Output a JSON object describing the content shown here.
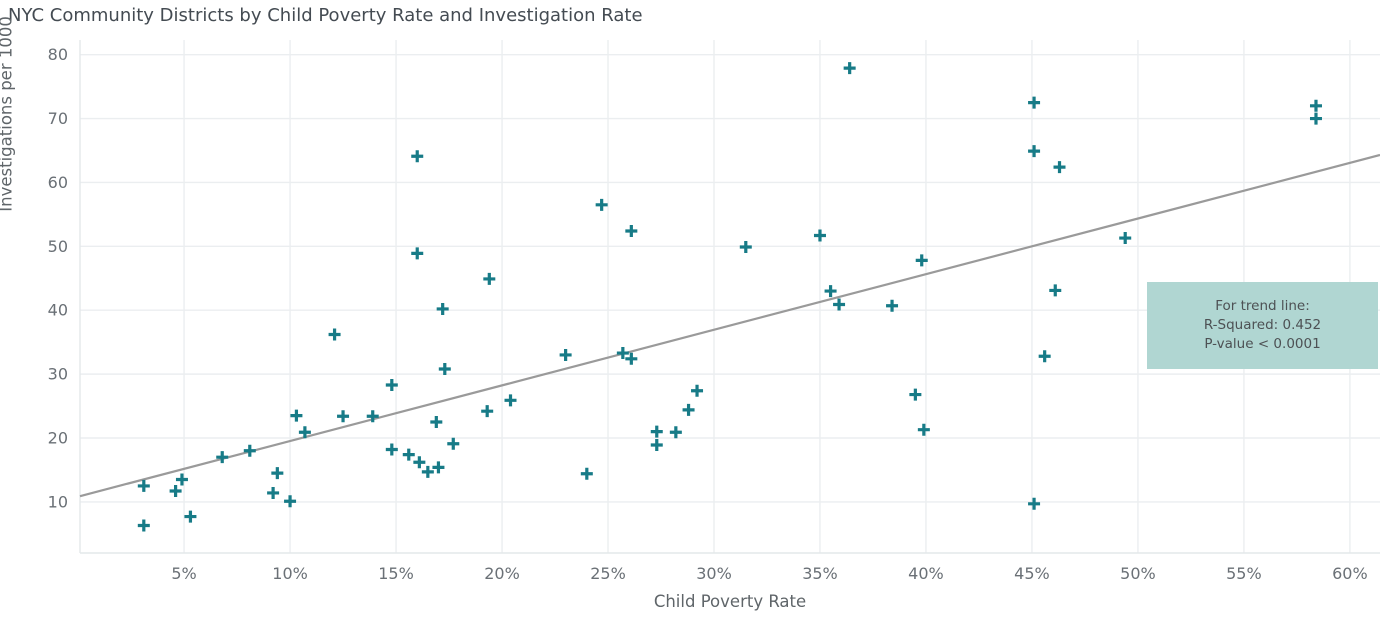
{
  "page": {
    "title": "NYC Community Districts by Child Poverty Rate and Investigation Rate"
  },
  "colors": {
    "background": "#ffffff",
    "marker": "#177b87",
    "trend_line": "#9a9a9a",
    "gridline": "#ebeef0",
    "axis_line": "#e4e8ea",
    "tick_text": "#6a7076",
    "title_text": "#444b52",
    "annotation_bg": "#b0d6d2",
    "annotation_text": "#4d5154"
  },
  "chart_data": {
    "type": "scatter",
    "title": "NYC Community Districts by Child Poverty Rate and Investigation Rate",
    "xlabel": "Child Poverty Rate",
    "ylabel": "Investigations per 1000",
    "grid": true,
    "legend": "none",
    "marker_symbol": "plus-cross",
    "xlim": [
      0.09,
      61.42
    ],
    "ylim": [
      2.0,
      82.3
    ],
    "x_tick_values": [
      5,
      10,
      15,
      20,
      25,
      30,
      35,
      40,
      45,
      50,
      55,
      60
    ],
    "x_tick_labels": [
      "5%",
      "10%",
      "15%",
      "20%",
      "25%",
      "30%",
      "35%",
      "40%",
      "45%",
      "50%",
      "55%",
      "60%"
    ],
    "y_tick_values": [
      10,
      20,
      30,
      40,
      50,
      60,
      70,
      80
    ],
    "y_tick_labels": [
      "10",
      "20",
      "30",
      "40",
      "50",
      "60",
      "70",
      "80"
    ],
    "points": [
      [
        3.1,
        12.5
      ],
      [
        3.1,
        6.3
      ],
      [
        4.6,
        11.7
      ],
      [
        4.9,
        13.5
      ],
      [
        5.3,
        7.7
      ],
      [
        6.8,
        17.0
      ],
      [
        8.1,
        18.0
      ],
      [
        9.2,
        11.4
      ],
      [
        9.4,
        14.5
      ],
      [
        10.0,
        10.1
      ],
      [
        10.3,
        23.5
      ],
      [
        10.7,
        20.9
      ],
      [
        12.1,
        36.2
      ],
      [
        12.5,
        23.4
      ],
      [
        13.9,
        23.4
      ],
      [
        14.8,
        28.3
      ],
      [
        14.8,
        18.2
      ],
      [
        15.6,
        17.4
      ],
      [
        16.0,
        64.1
      ],
      [
        16.0,
        48.9
      ],
      [
        16.1,
        16.2
      ],
      [
        16.5,
        14.7
      ],
      [
        16.9,
        22.5
      ],
      [
        17.0,
        15.4
      ],
      [
        17.2,
        40.2
      ],
      [
        17.3,
        30.8
      ],
      [
        17.7,
        19.1
      ],
      [
        19.3,
        24.2
      ],
      [
        19.4,
        44.9
      ],
      [
        20.4,
        25.9
      ],
      [
        23.0,
        33.0
      ],
      [
        24.0,
        14.4
      ],
      [
        24.7,
        56.5
      ],
      [
        25.7,
        33.3
      ],
      [
        26.1,
        52.4
      ],
      [
        26.1,
        32.4
      ],
      [
        27.3,
        21.0
      ],
      [
        27.3,
        18.9
      ],
      [
        28.2,
        20.9
      ],
      [
        28.8,
        24.4
      ],
      [
        29.2,
        27.4
      ],
      [
        31.5,
        49.9
      ],
      [
        35.0,
        51.7
      ],
      [
        35.5,
        43.0
      ],
      [
        35.9,
        40.9
      ],
      [
        36.4,
        77.9
      ],
      [
        38.4,
        40.7
      ],
      [
        39.5,
        26.8
      ],
      [
        39.8,
        47.8
      ],
      [
        39.9,
        21.3
      ],
      [
        45.1,
        72.5
      ],
      [
        45.1,
        64.9
      ],
      [
        45.1,
        9.7
      ],
      [
        45.6,
        32.8
      ],
      [
        46.1,
        43.1
      ],
      [
        46.3,
        62.4
      ],
      [
        49.4,
        51.3
      ],
      [
        58.4,
        72.0
      ],
      [
        58.4,
        70.0
      ]
    ],
    "trend_line": {
      "x": [
        0.09,
        61.42
      ],
      "y": [
        10.9,
        64.3
      ],
      "r_squared": 0.452,
      "p_value": "< 0.0001"
    },
    "annotation": {
      "line1": "For trend line:",
      "line2": "R-Squared: 0.452",
      "line3": "P-value < 0.0001"
    }
  }
}
